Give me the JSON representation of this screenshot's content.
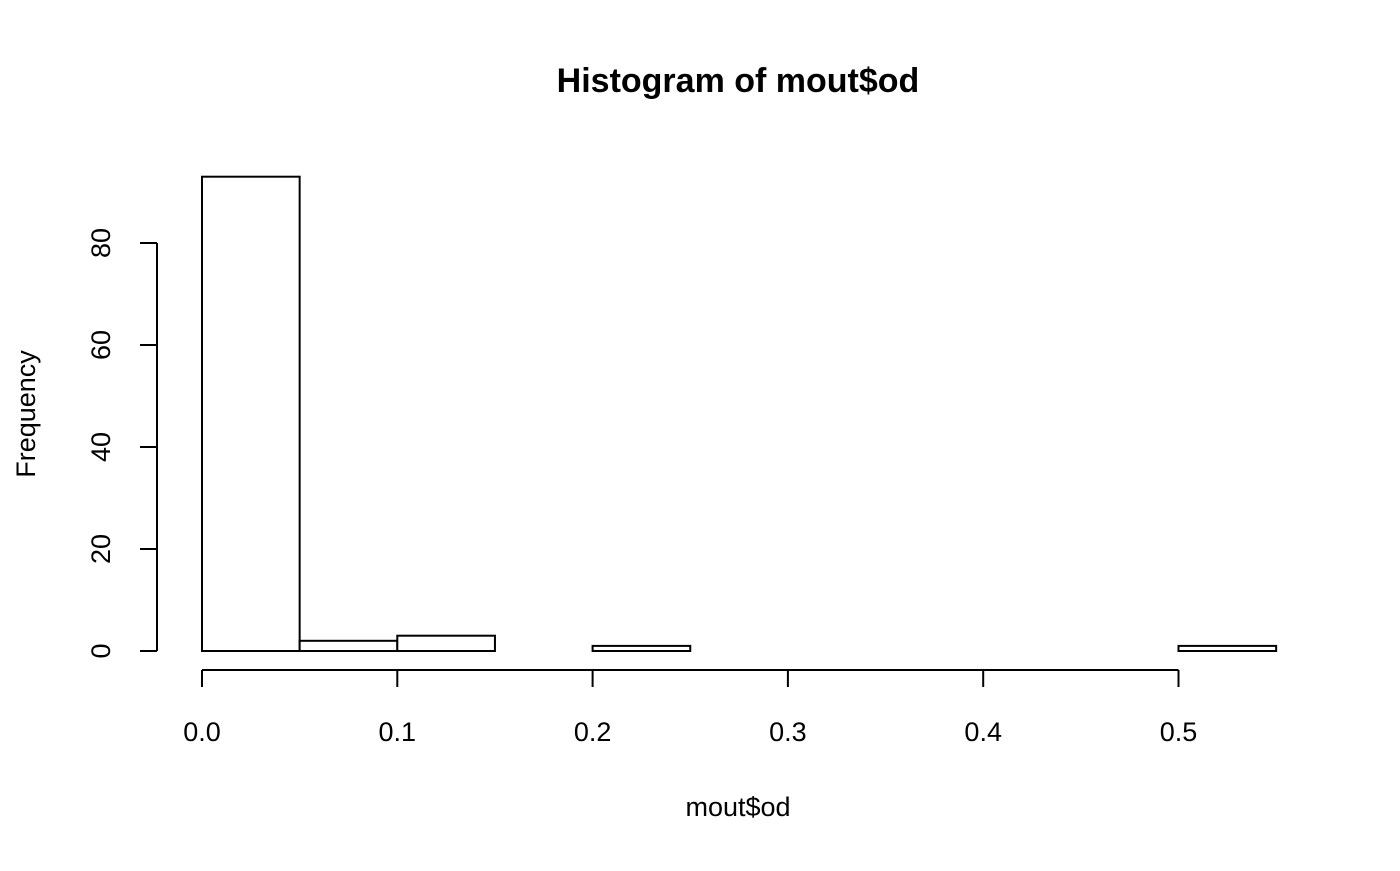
{
  "chart_data": {
    "type": "bar",
    "title": "Histogram of mout$od",
    "xlabel": "mout$od",
    "ylabel": "Frequency",
    "bins": [
      {
        "start": 0.0,
        "end": 0.05,
        "count": 93
      },
      {
        "start": 0.05,
        "end": 0.1,
        "count": 2
      },
      {
        "start": 0.1,
        "end": 0.15,
        "count": 3
      },
      {
        "start": 0.15,
        "end": 0.2,
        "count": 0
      },
      {
        "start": 0.2,
        "end": 0.25,
        "count": 1
      },
      {
        "start": 0.25,
        "end": 0.3,
        "count": 0
      },
      {
        "start": 0.3,
        "end": 0.35,
        "count": 0
      },
      {
        "start": 0.35,
        "end": 0.4,
        "count": 0
      },
      {
        "start": 0.4,
        "end": 0.45,
        "count": 0
      },
      {
        "start": 0.45,
        "end": 0.5,
        "count": 0
      },
      {
        "start": 0.5,
        "end": 0.55,
        "count": 1
      }
    ],
    "x_ticks": [
      "0.0",
      "0.1",
      "0.2",
      "0.3",
      "0.4",
      "0.5"
    ],
    "y_ticks": [
      "0",
      "20",
      "40",
      "60",
      "80"
    ],
    "xlim": [
      0.0,
      0.55
    ],
    "ylim": [
      0,
      93
    ],
    "grid": false,
    "legend": "none",
    "colors": {
      "bar_fill": "#ffffff",
      "bar_stroke": "#000000"
    }
  }
}
